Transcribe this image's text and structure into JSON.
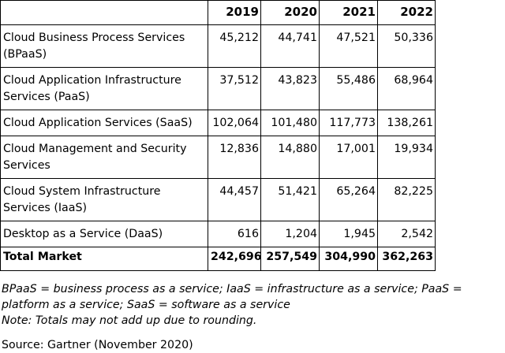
{
  "table": {
    "headers": [
      "",
      "2019",
      "2020",
      "2021",
      "2022"
    ],
    "rows": [
      {
        "label": "Cloud Business Process Services (BPaaS)",
        "values": [
          "45,212",
          "44,741",
          "47,521",
          "50,336"
        ]
      },
      {
        "label": "Cloud Application Infrastructure Services (PaaS)",
        "values": [
          "37,512",
          "43,823",
          "55,486",
          "68,964"
        ]
      },
      {
        "label": "Cloud Application Services (SaaS)",
        "values": [
          "102,064",
          "101,480",
          "117,773",
          "138,261"
        ]
      },
      {
        "label": "Cloud Management and Security Services",
        "values": [
          "12,836",
          "14,880",
          "17,001",
          "19,934"
        ]
      },
      {
        "label": "Cloud System Infrastructure Services (IaaS)",
        "values": [
          "44,457",
          "51,421",
          "65,264",
          "82,225"
        ]
      },
      {
        "label": "Desktop as a Service (DaaS)",
        "values": [
          "616",
          "1,204",
          "1,945",
          "2,542"
        ]
      }
    ],
    "total": {
      "label": "Total Market",
      "values": [
        "242,696",
        "257,549",
        "304,990",
        "362,263"
      ]
    }
  },
  "notes": {
    "abbreviations": "BPaaS = business process as a service; IaaS = infrastructure as a service; PaaS = platform as a service; SaaS = software as a service",
    "rounding": "Note: Totals may not add up due to rounding."
  },
  "source": "Source: Gartner (November 2020)"
}
